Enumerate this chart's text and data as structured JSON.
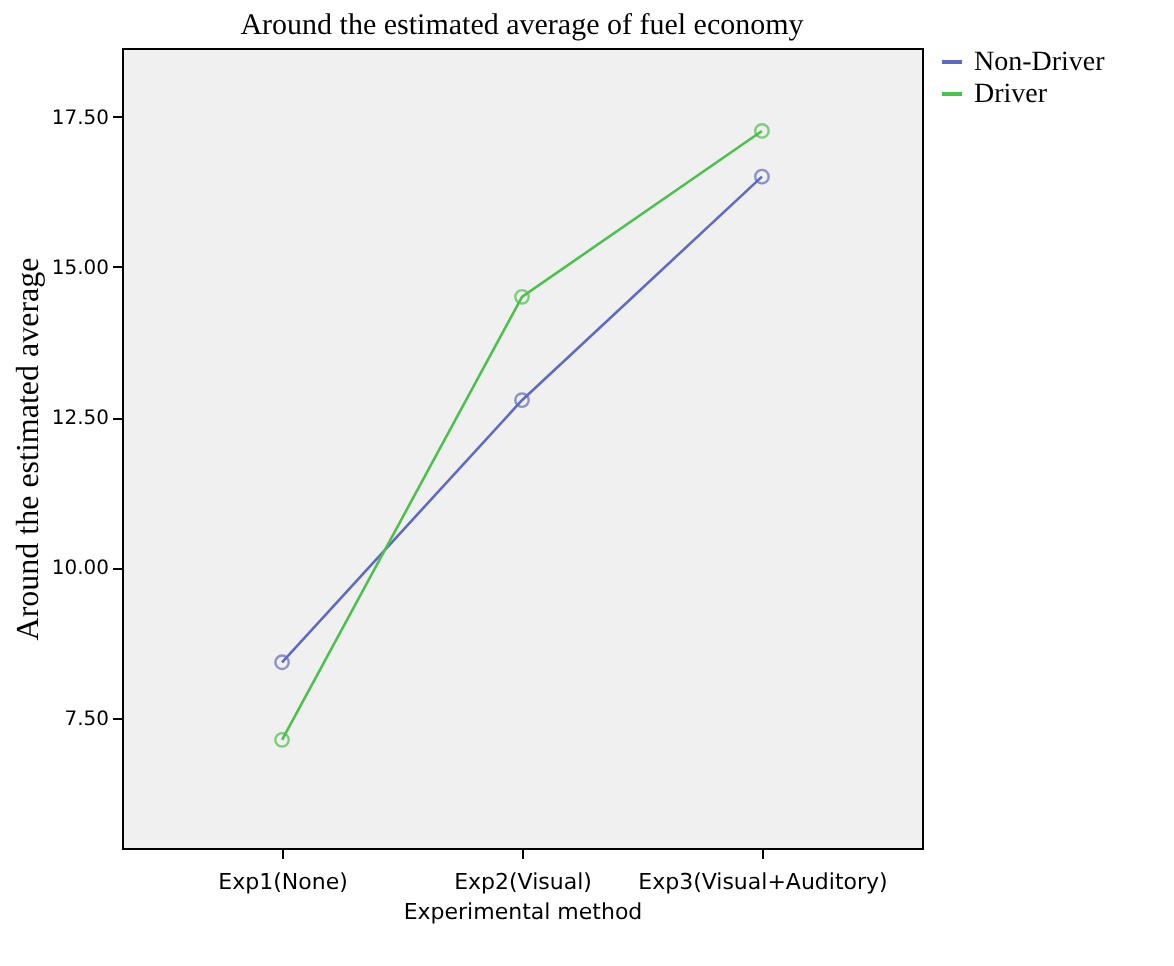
{
  "chart_data": {
    "type": "line",
    "title": "Around the estimated average of fuel economy",
    "xlabel": "Experimental method",
    "ylabel": "Around the estimated average",
    "categories": [
      "Exp1(None)",
      "Exp2(Visual)",
      "Exp3(Visual+Auditory)"
    ],
    "series": [
      {
        "name": "Non-Driver",
        "color": "#5d6bbf",
        "values": [
          8.42,
          12.78,
          16.5
        ]
      },
      {
        "name": "Driver",
        "color": "#4cbf4c",
        "values": [
          7.13,
          14.5,
          17.26
        ]
      }
    ],
    "ylim": [
      5.33,
      18.64
    ],
    "yticks": [
      {
        "value": 7.5,
        "label": "7.50"
      },
      {
        "value": 10,
        "label": "10.00"
      },
      {
        "value": 12.5,
        "label": "12.50"
      },
      {
        "value": 15,
        "label": "15.00"
      },
      {
        "value": 17.5,
        "label": "17.50"
      }
    ],
    "grid": false,
    "legend": "right",
    "marker": "circle",
    "line_style": "solid"
  }
}
